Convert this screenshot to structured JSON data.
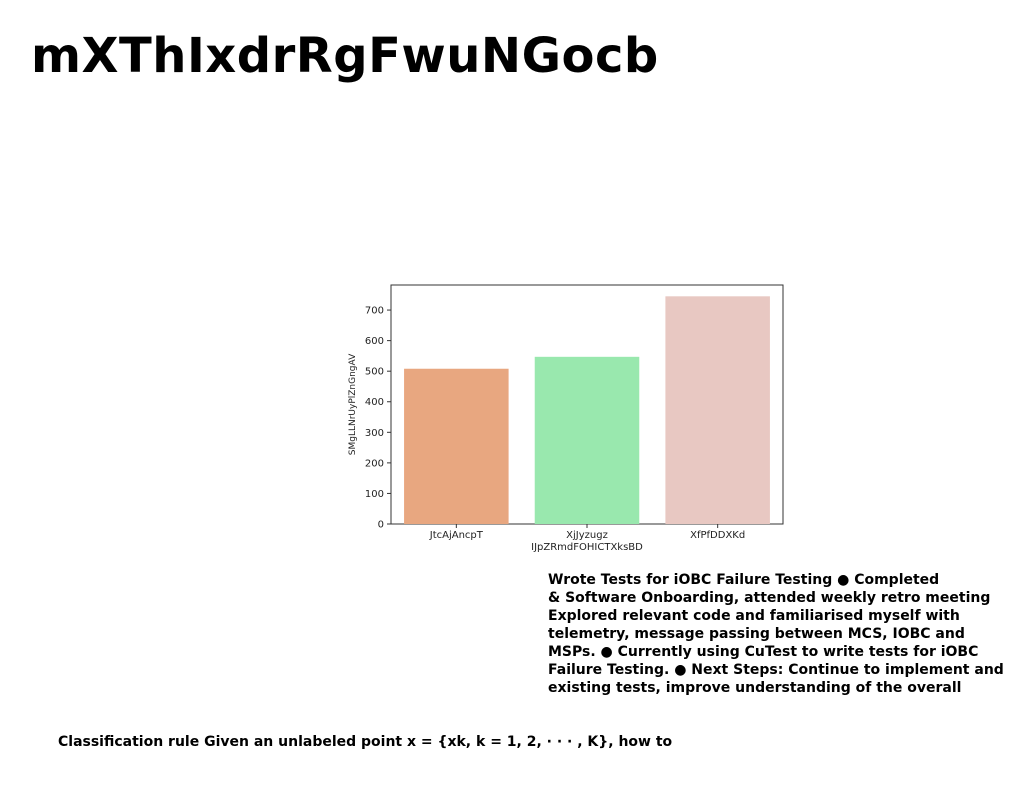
{
  "page": {
    "title": "mXThIxdrRgFwuNGocb",
    "notes_lines": [
      "Wrote Tests for iOBC Failure Testing ● Completed",
      "& Software Onboarding, attended weekly retro meeting",
      "Explored relevant code and familiarised myself with",
      "telemetry, message passing between MCS, IOBC and",
      "MSPs. ● Currently using CuTest to write tests for iOBC",
      "Failure Testing. ● Next Steps: Continue to implement and",
      "existing tests, improve understanding of the overall"
    ],
    "classification_rule": "Classification rule Given an unlabeled point x = {xk, k = 1, 2, · · · , K}, how to"
  },
  "chart_data": {
    "type": "bar",
    "categories": [
      "JtcAjAncpT",
      "XjJyzugz\nIJpZRmdFOHICTXksBD",
      "XfPfDDXKd"
    ],
    "values": [
      508,
      547,
      745
    ],
    "colors": [
      "#E8A780",
      "#99E8AE",
      "#E8C8C2"
    ],
    "title": "",
    "xlabel": "",
    "ylabel": "SMgLLNrUyPlZnGngAV",
    "ylim": [
      0,
      782
    ],
    "yticks": [
      0,
      100,
      200,
      300,
      400,
      500,
      600,
      700
    ]
  }
}
